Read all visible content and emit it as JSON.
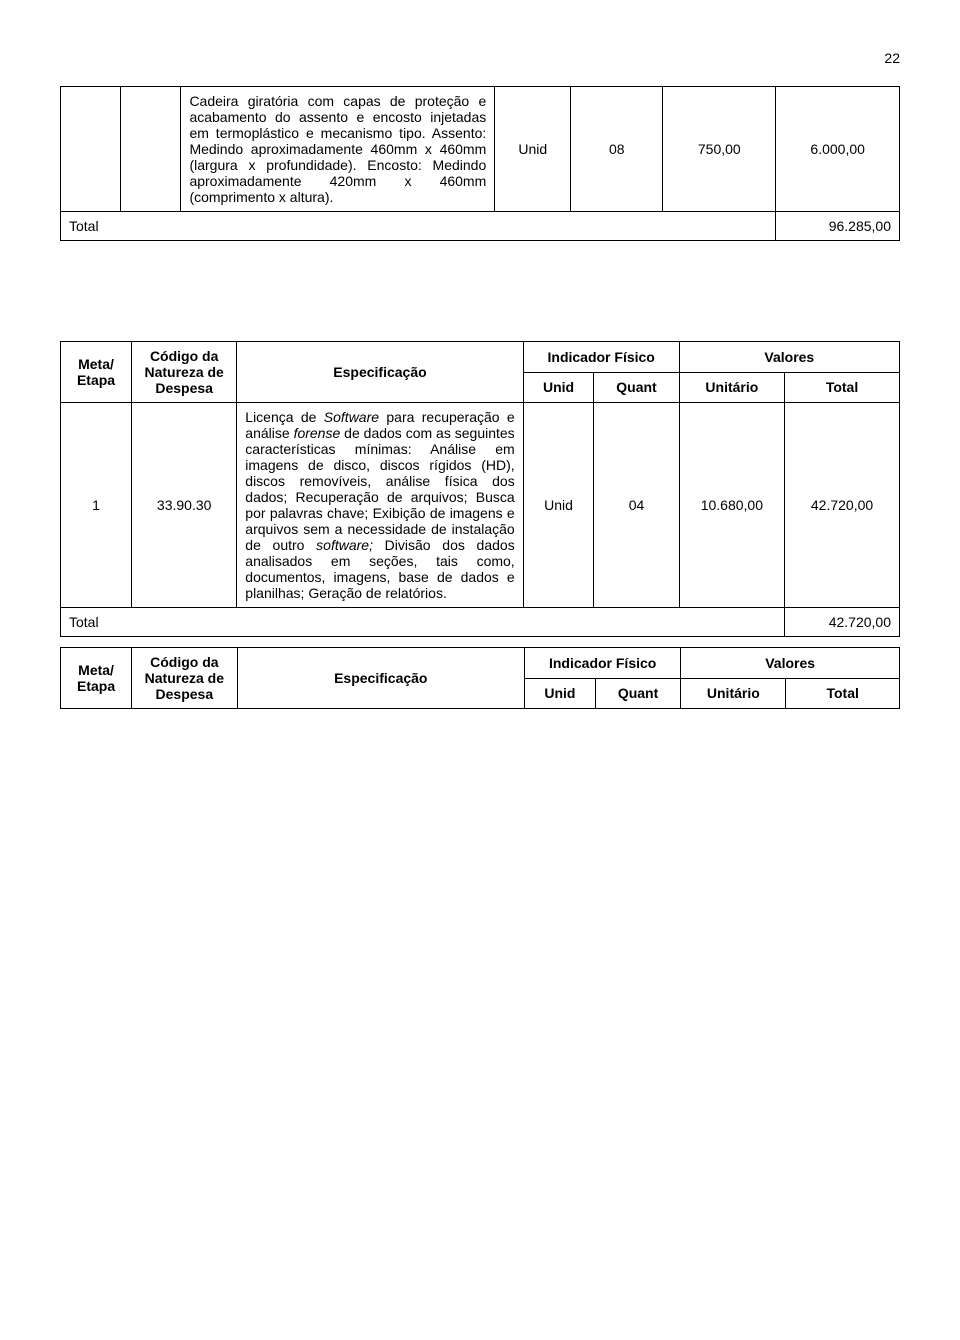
{
  "page_number": "22",
  "table1": {
    "spec": "Cadeira giratória com capas de proteção e acabamento do assento e encosto injetadas em termoplástico e mecanismo tipo. Assento: Medindo aproximadamente 460mm x 460mm (largura x profundidade). Encosto: Medindo aproximadamente 420mm x 460mm (comprimento x altura).",
    "unid": "Unid",
    "quant": "08",
    "unit": "750,00",
    "total": "6.000,00",
    "row_total_label": "Total",
    "row_total_value": "96.285,00"
  },
  "table2": {
    "hdr_meta": "Meta/\nEtapa",
    "hdr_code": "Código da Natureza de Despesa",
    "hdr_spec": "Especificação",
    "hdr_indicator": "Indicador Físico",
    "hdr_values": "Valores",
    "hdr_unid": "Unid",
    "hdr_quant": "Quant",
    "hdr_unit": "Unitário",
    "hdr_total": "Total",
    "meta": "1",
    "code": "33.90.30",
    "spec_p1": "Licença de ",
    "spec_i1": "Software",
    "spec_p2": " para recuperação e análise ",
    "spec_i2": "forense",
    "spec_p3": " de dados com as seguintes características mínimas: Análise em imagens de disco, discos rígidos (HD), discos removíveis, análise física dos dados; Recuperação de arquivos; Busca por palavras chave; Exibição de imagens e arquivos sem a necessidade de instalação de outro ",
    "spec_i3": "software;",
    "spec_p4": " Divisão dos dados analisados em seções, tais como, documentos, imagens, base de dados e planilhas; Geração de relatórios.",
    "unid": "Unid",
    "quant": "04",
    "unit": "10.680,00",
    "total": "42.720,00",
    "row_total_label": "Total",
    "row_total_value": "42.720,00"
  },
  "table3": {
    "hdr_meta": "Meta/\nEtapa",
    "hdr_code": "Código da Natureza de Despesa",
    "hdr_spec": "Especificação",
    "hdr_indicator": "Indicador Físico",
    "hdr_values": "Valores",
    "hdr_unid": "Unid",
    "hdr_quant": "Quant",
    "hdr_unit": "Unitário",
    "hdr_total": "Total"
  }
}
